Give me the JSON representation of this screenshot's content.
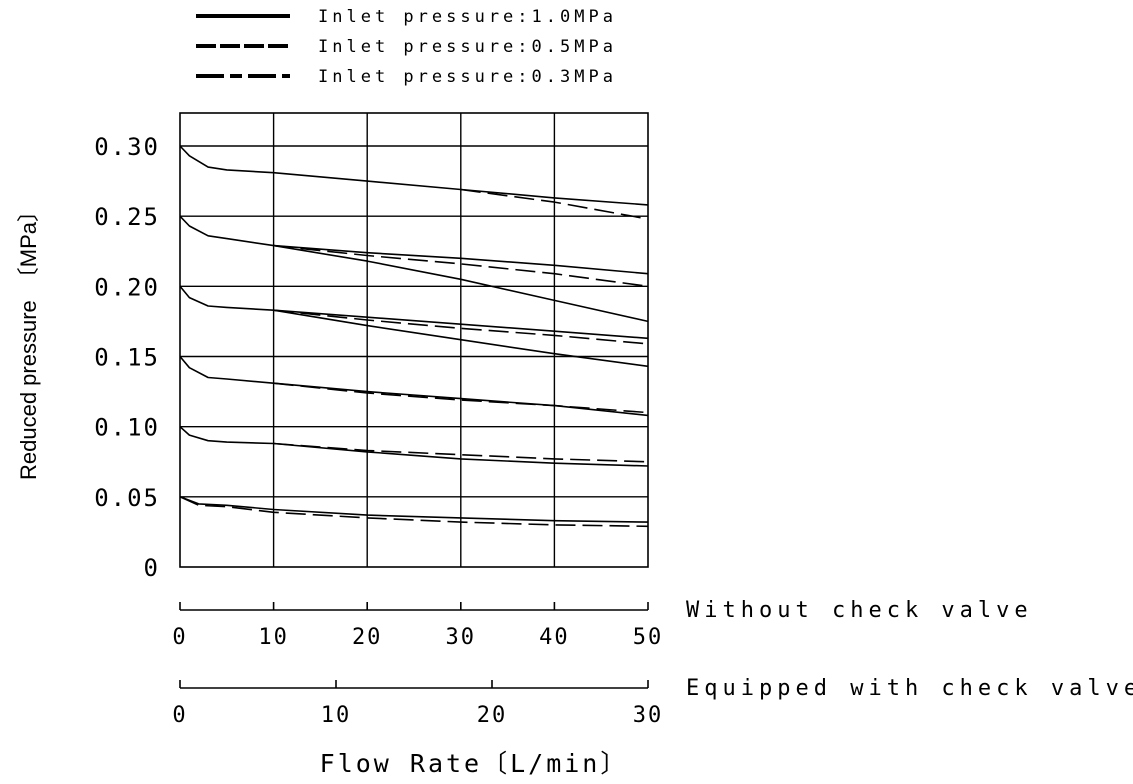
{
  "chart_data": {
    "type": "line",
    "title": "",
    "xlabel": "Flow Rate〔L/min〕",
    "ylabel": "Reduced pressure　〔MPa〕",
    "xlim": [
      0,
      50
    ],
    "ylim": [
      0,
      0.3
    ],
    "grid": true,
    "legend": {
      "placement": "top",
      "entries": [
        {
          "label": "Inlet pressure:1.0MPa",
          "style": "solid"
        },
        {
          "label": "Inlet pressure:0.5MPa",
          "style": "dashed"
        },
        {
          "label": "Inlet pressure:0.3MPa",
          "style": "dashdot"
        }
      ]
    },
    "y_ticks": [
      "0",
      "0.05",
      "0.10",
      "0.15",
      "0.20",
      "0.25",
      "0.30"
    ],
    "x_axes": [
      {
        "note": "Without check valve",
        "ticks": [
          "0",
          "10",
          "20",
          "30",
          "40",
          "50"
        ],
        "values": [
          0,
          10,
          20,
          30,
          40,
          50
        ],
        "max": 50
      },
      {
        "note": "Equipped with check valve",
        "ticks": [
          "0",
          "10",
          "20",
          "30"
        ],
        "values": [
          0,
          10,
          20,
          30
        ],
        "max": 30
      }
    ],
    "series": [
      {
        "style": "solid",
        "x": [
          0,
          1,
          3,
          5,
          10,
          20,
          30,
          40,
          50
        ],
        "y": [
          0.3,
          0.293,
          0.285,
          0.283,
          0.281,
          0.275,
          0.269,
          0.263,
          0.258
        ]
      },
      {
        "style": "dashed",
        "x": [
          30,
          40,
          50
        ],
        "y": [
          0.269,
          0.26,
          0.248
        ]
      },
      {
        "style": "solid",
        "x": [
          0,
          1,
          3,
          5,
          10,
          20,
          30,
          40,
          50
        ],
        "y": [
          0.25,
          0.243,
          0.236,
          0.234,
          0.229,
          0.224,
          0.22,
          0.215,
          0.209
        ]
      },
      {
        "style": "dashed",
        "x": [
          10,
          20,
          30,
          40,
          50
        ],
        "y": [
          0.229,
          0.222,
          0.216,
          0.209,
          0.2
        ]
      },
      {
        "style": "solid",
        "x": [
          10,
          20,
          30,
          40,
          50
        ],
        "y": [
          0.229,
          0.218,
          0.205,
          0.19,
          0.175
        ]
      },
      {
        "style": "solid",
        "x": [
          0,
          1,
          3,
          5,
          10,
          20,
          30,
          40,
          50
        ],
        "y": [
          0.2,
          0.192,
          0.186,
          0.185,
          0.183,
          0.178,
          0.173,
          0.168,
          0.163
        ]
      },
      {
        "style": "dashed",
        "x": [
          10,
          20,
          30,
          40,
          50
        ],
        "y": [
          0.183,
          0.176,
          0.17,
          0.165,
          0.159
        ]
      },
      {
        "style": "solid",
        "x": [
          10,
          20,
          30,
          40,
          50
        ],
        "y": [
          0.183,
          0.172,
          0.162,
          0.152,
          0.143
        ]
      },
      {
        "style": "solid",
        "x": [
          0,
          1,
          3,
          5,
          10,
          20,
          30,
          40,
          50
        ],
        "y": [
          0.15,
          0.142,
          0.135,
          0.134,
          0.131,
          0.125,
          0.12,
          0.115,
          0.108
        ]
      },
      {
        "style": "dashed",
        "x": [
          10,
          20,
          30,
          40,
          50
        ],
        "y": [
          0.131,
          0.124,
          0.119,
          0.115,
          0.11
        ]
      },
      {
        "style": "solid",
        "x": [
          0,
          1,
          3,
          5,
          10,
          20,
          30,
          40,
          50
        ],
        "y": [
          0.1,
          0.094,
          0.09,
          0.089,
          0.088,
          0.082,
          0.077,
          0.074,
          0.072
        ]
      },
      {
        "style": "dashed",
        "x": [
          10,
          20,
          30,
          40,
          50
        ],
        "y": [
          0.088,
          0.083,
          0.08,
          0.077,
          0.075
        ]
      },
      {
        "style": "solid",
        "x": [
          0,
          2,
          5,
          10,
          20,
          30,
          40,
          50
        ],
        "y": [
          0.05,
          0.045,
          0.044,
          0.041,
          0.037,
          0.035,
          0.033,
          0.032
        ]
      },
      {
        "style": "dashed",
        "x": [
          0,
          2,
          5,
          10,
          20,
          30,
          40,
          50
        ],
        "y": [
          0.05,
          0.044,
          0.043,
          0.039,
          0.035,
          0.032,
          0.03,
          0.029
        ]
      }
    ]
  }
}
